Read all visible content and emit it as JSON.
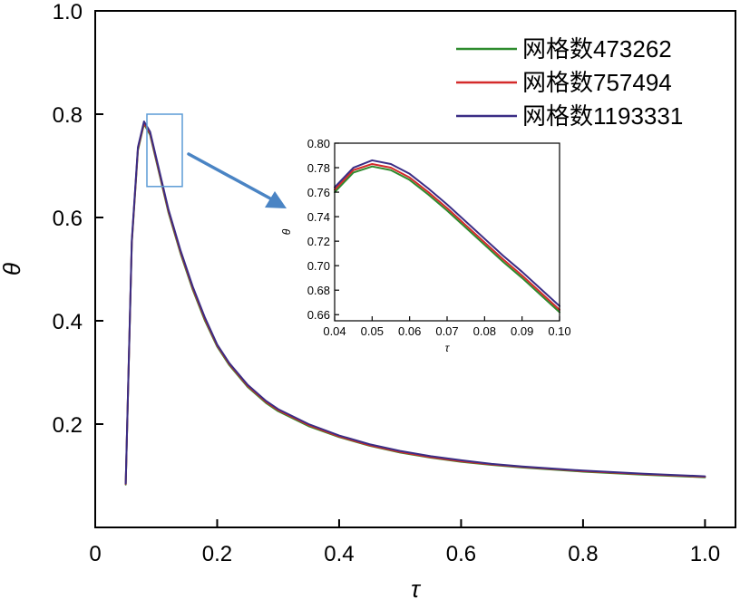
{
  "chart_data": [
    {
      "type": "line",
      "xlabel": "τ",
      "ylabel": "θ",
      "xlim": [
        0,
        1.05
      ],
      "ylim": [
        0,
        1.0
      ],
      "xticks": [
        0,
        0.2,
        0.4,
        0.6,
        0.8,
        1.0
      ],
      "xtick_labels": [
        "0",
        "0.2",
        "0.4",
        "0.6",
        "0.8",
        "1.0"
      ],
      "yticks": [
        0.2,
        0.4,
        0.6,
        0.8,
        1.0
      ],
      "ytick_labels": [
        "0.2",
        "0.4",
        "0.6",
        "0.8",
        "1.0"
      ],
      "legend_position": "top-right",
      "series": [
        {
          "name": "网格数473262",
          "color": "#2e8b2e",
          "x": [
            0.05,
            0.06,
            0.07,
            0.08,
            0.09,
            0.1,
            0.12,
            0.14,
            0.16,
            0.18,
            0.2,
            0.22,
            0.25,
            0.28,
            0.3,
            0.35,
            0.4,
            0.45,
            0.5,
            0.55,
            0.6,
            0.65,
            0.7,
            0.8,
            0.9,
            1.0
          ],
          "y": [
            0.083,
            0.55,
            0.73,
            0.781,
            0.76,
            0.71,
            0.61,
            0.53,
            0.46,
            0.4,
            0.35,
            0.314,
            0.272,
            0.241,
            0.225,
            0.196,
            0.175,
            0.158,
            0.145,
            0.135,
            0.127,
            0.121,
            0.116,
            0.108,
            0.102,
            0.097
          ]
        },
        {
          "name": "网格数757494",
          "color": "#d42a2a",
          "x": [
            0.05,
            0.06,
            0.07,
            0.08,
            0.09,
            0.1,
            0.12,
            0.14,
            0.16,
            0.18,
            0.2,
            0.22,
            0.25,
            0.28,
            0.3,
            0.35,
            0.4,
            0.45,
            0.5,
            0.55,
            0.6,
            0.65,
            0.7,
            0.8,
            0.9,
            1.0
          ],
          "y": [
            0.084,
            0.553,
            0.733,
            0.783,
            0.763,
            0.713,
            0.613,
            0.533,
            0.463,
            0.403,
            0.352,
            0.316,
            0.274,
            0.243,
            0.227,
            0.198,
            0.176,
            0.159,
            0.146,
            0.136,
            0.128,
            0.122,
            0.117,
            0.109,
            0.103,
            0.098
          ]
        },
        {
          "name": "网格数1193331",
          "color": "#3a2d85",
          "x": [
            0.05,
            0.06,
            0.07,
            0.08,
            0.09,
            0.1,
            0.12,
            0.14,
            0.16,
            0.18,
            0.2,
            0.22,
            0.25,
            0.28,
            0.3,
            0.35,
            0.4,
            0.45,
            0.5,
            0.55,
            0.6,
            0.65,
            0.7,
            0.8,
            0.9,
            1.0
          ],
          "y": [
            0.085,
            0.556,
            0.736,
            0.786,
            0.766,
            0.716,
            0.616,
            0.536,
            0.466,
            0.406,
            0.354,
            0.318,
            0.276,
            0.245,
            0.229,
            0.2,
            0.178,
            0.161,
            0.148,
            0.138,
            0.13,
            0.123,
            0.118,
            0.11,
            0.104,
            0.099
          ]
        }
      ],
      "zoom_box": {
        "x": [
          0.04,
          0.1
        ],
        "y": [
          0.66,
          0.8
        ]
      },
      "arrow_color": "#4a84c4",
      "zoom_box_color": "#5b9bd5"
    },
    {
      "type": "line",
      "role": "inset",
      "xlabel": "τ",
      "ylabel": "θ",
      "xlim": [
        0.04,
        0.1
      ],
      "ylim": [
        0.655,
        0.8
      ],
      "xticks": [
        0.04,
        0.05,
        0.06,
        0.07,
        0.08,
        0.09,
        0.1
      ],
      "xtick_labels": [
        "0.04",
        "0.05",
        "0.06",
        "0.07",
        "0.08",
        "0.09",
        "0.10"
      ],
      "yticks": [
        0.66,
        0.68,
        0.7,
        0.72,
        0.74,
        0.76,
        0.78,
        0.8
      ],
      "ytick_labels": [
        "0.66",
        "0.68",
        "0.70",
        "0.72",
        "0.74",
        "0.76",
        "0.78",
        "0.80"
      ],
      "series": [
        {
          "name": "网格数473262",
          "color": "#2e8b2e",
          "x": [
            0.04,
            0.045,
            0.05,
            0.055,
            0.06,
            0.065,
            0.07,
            0.075,
            0.08,
            0.085,
            0.09,
            0.095,
            0.1
          ],
          "y": [
            0.76,
            0.776,
            0.781,
            0.778,
            0.77,
            0.758,
            0.745,
            0.731,
            0.717,
            0.703,
            0.69,
            0.676,
            0.662
          ]
        },
        {
          "name": "网格数757494",
          "color": "#d42a2a",
          "x": [
            0.04,
            0.045,
            0.05,
            0.055,
            0.06,
            0.065,
            0.07,
            0.075,
            0.08,
            0.085,
            0.09,
            0.095,
            0.1
          ],
          "y": [
            0.762,
            0.778,
            0.783,
            0.78,
            0.772,
            0.76,
            0.747,
            0.733,
            0.719,
            0.705,
            0.692,
            0.678,
            0.664
          ]
        },
        {
          "name": "网格数1193331",
          "color": "#3a2d85",
          "x": [
            0.04,
            0.045,
            0.05,
            0.055,
            0.06,
            0.065,
            0.07,
            0.075,
            0.08,
            0.085,
            0.09,
            0.095,
            0.1
          ],
          "y": [
            0.764,
            0.78,
            0.786,
            0.783,
            0.775,
            0.763,
            0.75,
            0.736,
            0.722,
            0.708,
            0.695,
            0.681,
            0.667
          ]
        }
      ]
    }
  ]
}
